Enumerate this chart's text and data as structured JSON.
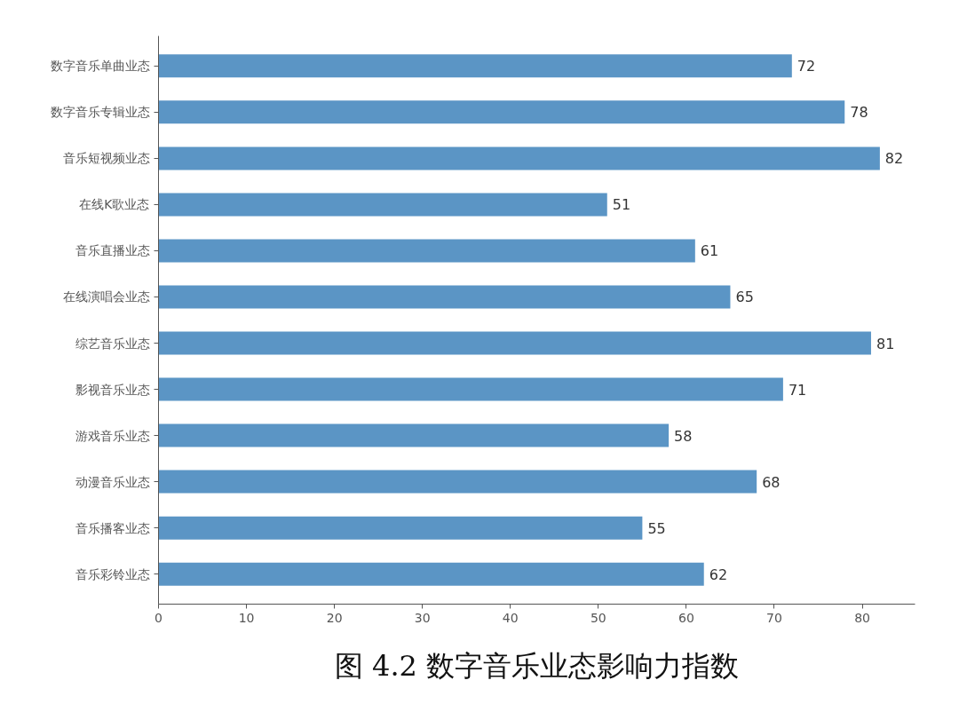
{
  "chart_data": {
    "type": "bar",
    "orientation": "horizontal",
    "title": "图 4.2 数字音乐业态影响力指数",
    "categories": [
      "数字音乐单曲业态",
      "数字音乐专辑业态",
      "音乐短视频业态",
      "在线K歌业态",
      "音乐直播业态",
      "在线演唱会业态",
      "综艺音乐业态",
      "影视音乐业态",
      "游戏音乐业态",
      "动漫音乐业态",
      "音乐播客业态",
      "音乐彩铃业态"
    ],
    "values": [
      72,
      78,
      82,
      51,
      61,
      65,
      81,
      71,
      58,
      68,
      55,
      62
    ],
    "color": "#5b95c5",
    "xlim": [
      0,
      86
    ],
    "xticks": [
      0,
      10,
      20,
      30,
      40,
      50,
      60,
      70,
      80
    ],
    "data_labels": true,
    "grid": false
  }
}
